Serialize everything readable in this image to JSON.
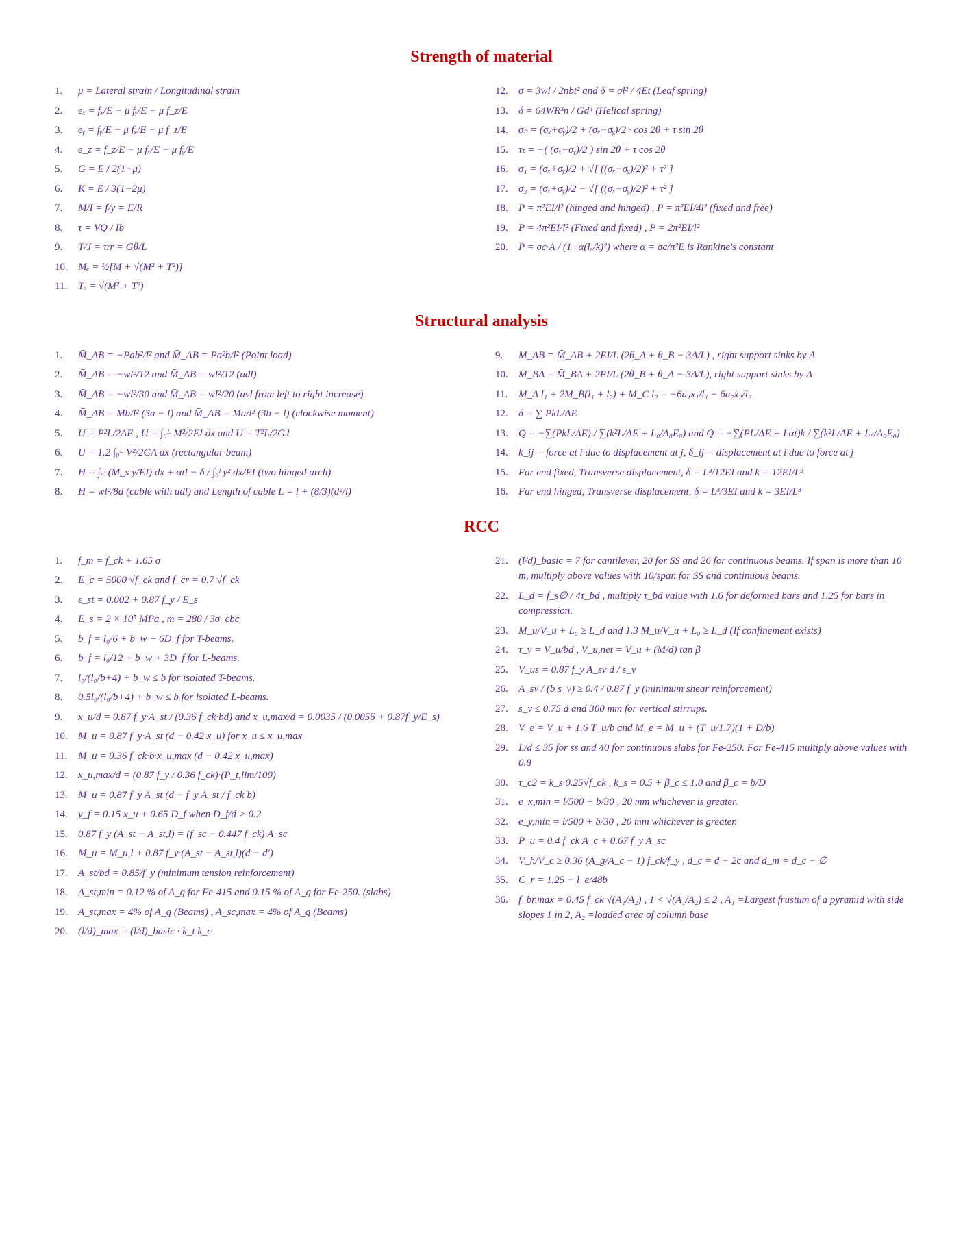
{
  "sections": {
    "som": {
      "title": "Strength of material",
      "title_color": "#c00000",
      "left": [
        "μ = Lateral strain / Longitudinal strain",
        "eₓ = fₓ/E − μ fᵧ/E − μ f_z/E",
        "eᵧ = fᵧ/E − μ fₓ/E − μ f_z/E",
        "e_z = f_z/E − μ fₓ/E − μ fᵧ/E",
        "G = E / 2(1+μ)",
        "K = E / 3(1−2μ)",
        "M/I = f/y = E/R",
        "τ = VQ / Ib",
        "T/J = τ/r = Gθ/L",
        "Mₑ = ½[M + √(M² + T²)]",
        "Tₑ = √(M² + T²)"
      ],
      "right": [
        "σ = 3wl / 2nbt²  and  δ = σl² / 4Et  (Leaf spring)",
        "δ = 64WR³n / Gd⁴  (Helical spring)",
        "σₙ = (σₓ+σᵧ)/2 + (σₓ−σᵧ)/2 · cos 2θ + τ sin 2θ",
        "τₜ = −( (σₓ−σᵧ)/2 ) sin 2θ + τ cos 2θ",
        "σ₁ = (σₓ+σᵧ)/2 + √[ ((σₓ−σᵧ)/2)² + τ² ]",
        "σ₃ = (σₓ+σᵧ)/2 − √[ ((σₓ−σᵧ)/2)² + τ² ]",
        "P = π²EI/l² (hinged and hinged) , P = π²EI/4l² (fixed and free)",
        "P = 4π²EI/l² (Fixed and fixed) , P = 2π²EI/l²",
        "P = σc·A / (1+α(lₑ/k)²)  where α = σc/π²E is Rankine's constant"
      ],
      "right_start": 12
    },
    "sa": {
      "title": "Structural analysis",
      "title_color": "#c00000",
      "left": [
        "M̄_AB = −Pab²/l²  and  M̄_AB = Pa²b/l²   (Point load)",
        "M̄_AB = −wl²/12  and  M̄_AB = wl²/12   (udl)",
        "M̄_AB = −wl²/30  and  M̄_AB = wl²/20   (uvl from left to right increase)",
        "M̄_AB = Mb/l² (3a − l)  and  M̄_AB = Ma/l² (3b − l)   (clockwise moment)",
        "U = P²L/2AE ,  U = ∫₀ᴸ M²/2EI dx   and   U = T²L/2GJ",
        "U = 1.2 ∫₀ᴸ V²/2GA dx (rectangular beam)",
        "H = ∫₀ˡ (M_s y/EI) dx + αtl − δ  /  ∫₀ˡ y² dx/EI   (two hinged arch)",
        "H = wl²/8d (cable with udl)  and  Length of cable L = l + (8/3)(d²/l)"
      ],
      "right": [
        "M_AB = M̄_AB + 2EI/L (2θ_A + θ_B − 3Δ/L) , right support sinks by Δ",
        "M_BA = M̄_BA + 2EI/L (2θ_B + θ_A − 3Δ/L), right support sinks by Δ",
        "M_A l₁ + 2M_B(l₁ + l₂) + M_C l₂ = −6a₁x₁/l₁ − 6a₂x₂/l₂",
        "δ = ∑ PkL/AE",
        "Q = −∑(PkL/AE) / ∑(k²L/AE + L₀/A₀E₀)  and  Q = −∑(PL/AE + Lαt)k / ∑(k²L/AE + L₀/A₀E₀)",
        "k_ij = force at i due to displacement at j,  δ_ij = displacement at i due to force at j",
        "Far end fixed, Transverse displacement, δ = L³/12EI and k = 12EI/L³",
        "Far end hinged, Transverse displacement, δ = L³/3EI and k = 3EI/L³"
      ],
      "right_start": 9
    },
    "rcc": {
      "title": "RCC",
      "title_color": "#c00000",
      "left": [
        "f_m = f_ck + 1.65 σ",
        "E_c = 5000 √f_ck  and  f_cr = 0.7 √f_ck",
        "ε_st = 0.002 + 0.87 f_y / E_s",
        "E_s = 2 × 10⁵ MPa ,  m = 280 / 3σ_cbc",
        "b_f = l₀/6 + b_w + 6D_f   for T-beams.",
        "b_f = l₀/12 + b_w + 3D_f   for L-beams.",
        "l₀/(l₀/b+4) + b_w ≤ b   for isolated T-beams.",
        "0.5l₀/(l₀/b+4) + b_w ≤ b   for isolated L-beams.",
        "x_u/d = 0.87 f_y·A_st / (0.36 f_ck·bd)  and  x_u,max/d = 0.0035 / (0.0055 + 0.87f_y/E_s)",
        "M_u = 0.87 f_y·A_st (d − 0.42 x_u)   for x_u ≤ x_u,max",
        "M_u = 0.36 f_ck·b·x_u,max (d − 0.42 x_u,max)",
        "x_u,max/d = (0.87 f_y / 0.36 f_ck)·(P_t,lim/100)",
        "M_u = 0.87 f_y A_st (d − f_y A_st / f_ck b)",
        "y_f = 0.15 x_u + 0.65 D_f   when D_f/d > 0.2",
        "0.87 f_y (A_st − A_st,l) = (f_sc − 0.447 f_ck)·A_sc",
        "M_u = M_u,l + 0.87 f_y·(A_st − A_st,l)(d − d′)",
        "A_st/bd = 0.85/f_y  (minimum tension reinforcement)",
        "A_st,min = 0.12 % of A_g for Fe-415 and 0.15 % of A_g for Fe-250. (slabs)",
        "A_st,max = 4% of A_g (Beams) , A_sc,max = 4% of A_g (Beams)",
        "(l/d)_max = (l/d)_basic · k_t k_c"
      ],
      "right": [
        "(l/d)_basic = 7 for cantilever, 20 for SS and 26 for continuous beams. If span is more than 10 m, multiply above values with 10/span for SS and continuous beams.",
        "L_d = f_s∅ / 4τ_bd , multiply τ_bd value with 1.6 for deformed bars and 1.25 for bars in compression.",
        "M_u/V_u + L₀ ≥ L_d  and  1.3 M_u/V_u + L₀ ≥ L_d (If confinement exists)",
        "τ_v = V_u/bd ,  V_u,net = V_u + (M/d) tan β",
        "V_us = 0.87 f_y A_sv d / s_v",
        "A_sv / (b s_v) ≥ 0.4 / 0.87 f_y  (minimum shear reinforcement)",
        "s_v ≤ 0.75 d and 300 mm for vertical stirrups.",
        "V_e = V_u + 1.6 T_u/b  and  M_e = M_u + (T_u/1.7)(1 + D/b)",
        "L/d ≤ 35 for ss and 40 for continuous slabs for Fe-250. For Fe-415 multiply above values with 0.8",
        "τ_c2 = k_s 0.25√f_ck ,  k_s = 0.5 + β_c ≤ 1.0 and β_c = b/D",
        "e_x,min = l/500 + b/30 , 20 mm whichever is greater.",
        "e_y,min = l/500 + b/30 , 20 mm whichever is greater.",
        "P_u = 0.4 f_ck A_c + 0.67 f_y A_sc",
        "V_h/V_c ≥ 0.36 (A_g/A_c − 1) f_ck/f_y ,  d_c = d − 2c and d_m = d_c − ∅",
        "C_r = 1.25 − l_e/48b",
        "f_br,max = 0.45 f_ck √(A₁/A₂) , 1 < √(A₁/A₂) ≤ 2 , A₁ =Largest frustum of a pyramid with side slopes 1 in 2, A₂ =loaded area of column base"
      ],
      "right_start": 21
    }
  },
  "style": {
    "text_color": "#5b2d90",
    "heading_color": "#c00000",
    "background": "#ffffff",
    "font_size_body": 15,
    "font_size_heading": 24
  }
}
